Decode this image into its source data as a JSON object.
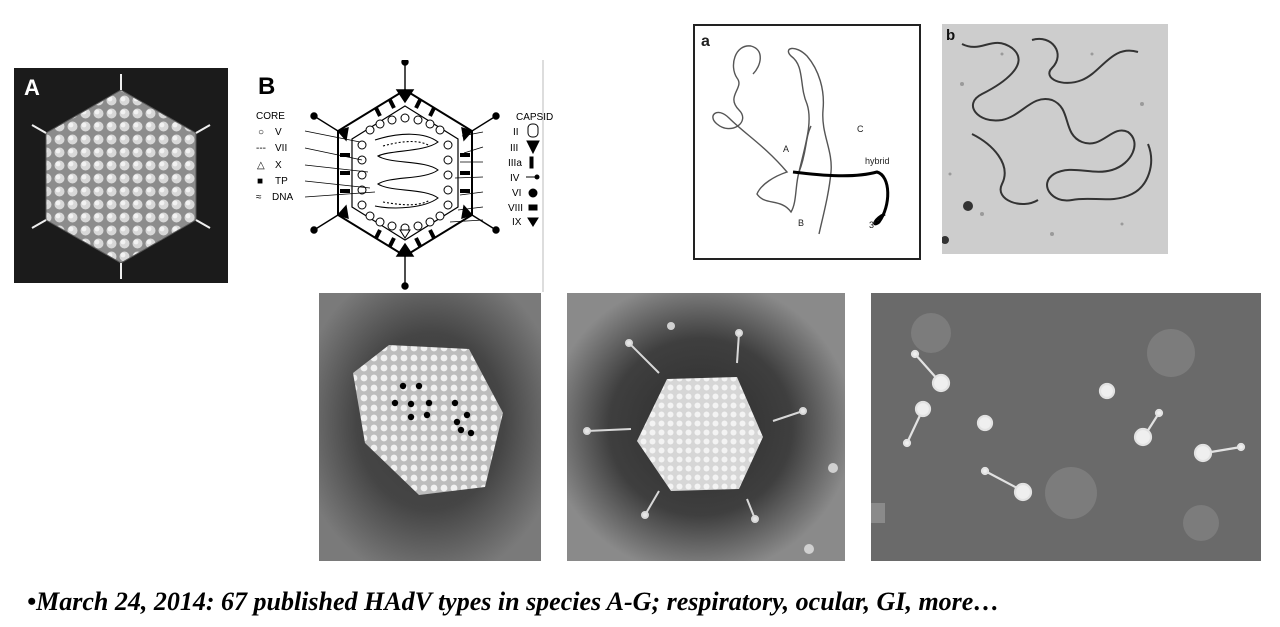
{
  "panel_a": {
    "letter": "A"
  },
  "panel_b": {
    "letter": "B",
    "core_title": "CORE",
    "core_items": [
      {
        "symbol": "○",
        "label": "V"
      },
      {
        "symbol": "---",
        "label": "VII"
      },
      {
        "symbol": "△",
        "label": "X"
      },
      {
        "symbol": "■",
        "label": "TP"
      },
      {
        "symbol": "≈",
        "label": "DNA"
      }
    ],
    "capsid_title": "CAPSID",
    "capsid_items": [
      "II",
      "III",
      "IIIa",
      "IV",
      "VI",
      "VIII",
      "IX"
    ]
  },
  "panel_dna_a": {
    "letter": "a",
    "labels": [
      "A",
      "B",
      "C",
      "hybrid",
      "3'"
    ]
  },
  "panel_dna_b": {
    "letter": "b"
  },
  "caption": "•March 24, 2014:  67 published HAdV types in species A-G; respiratory, ocular, GI, more…"
}
